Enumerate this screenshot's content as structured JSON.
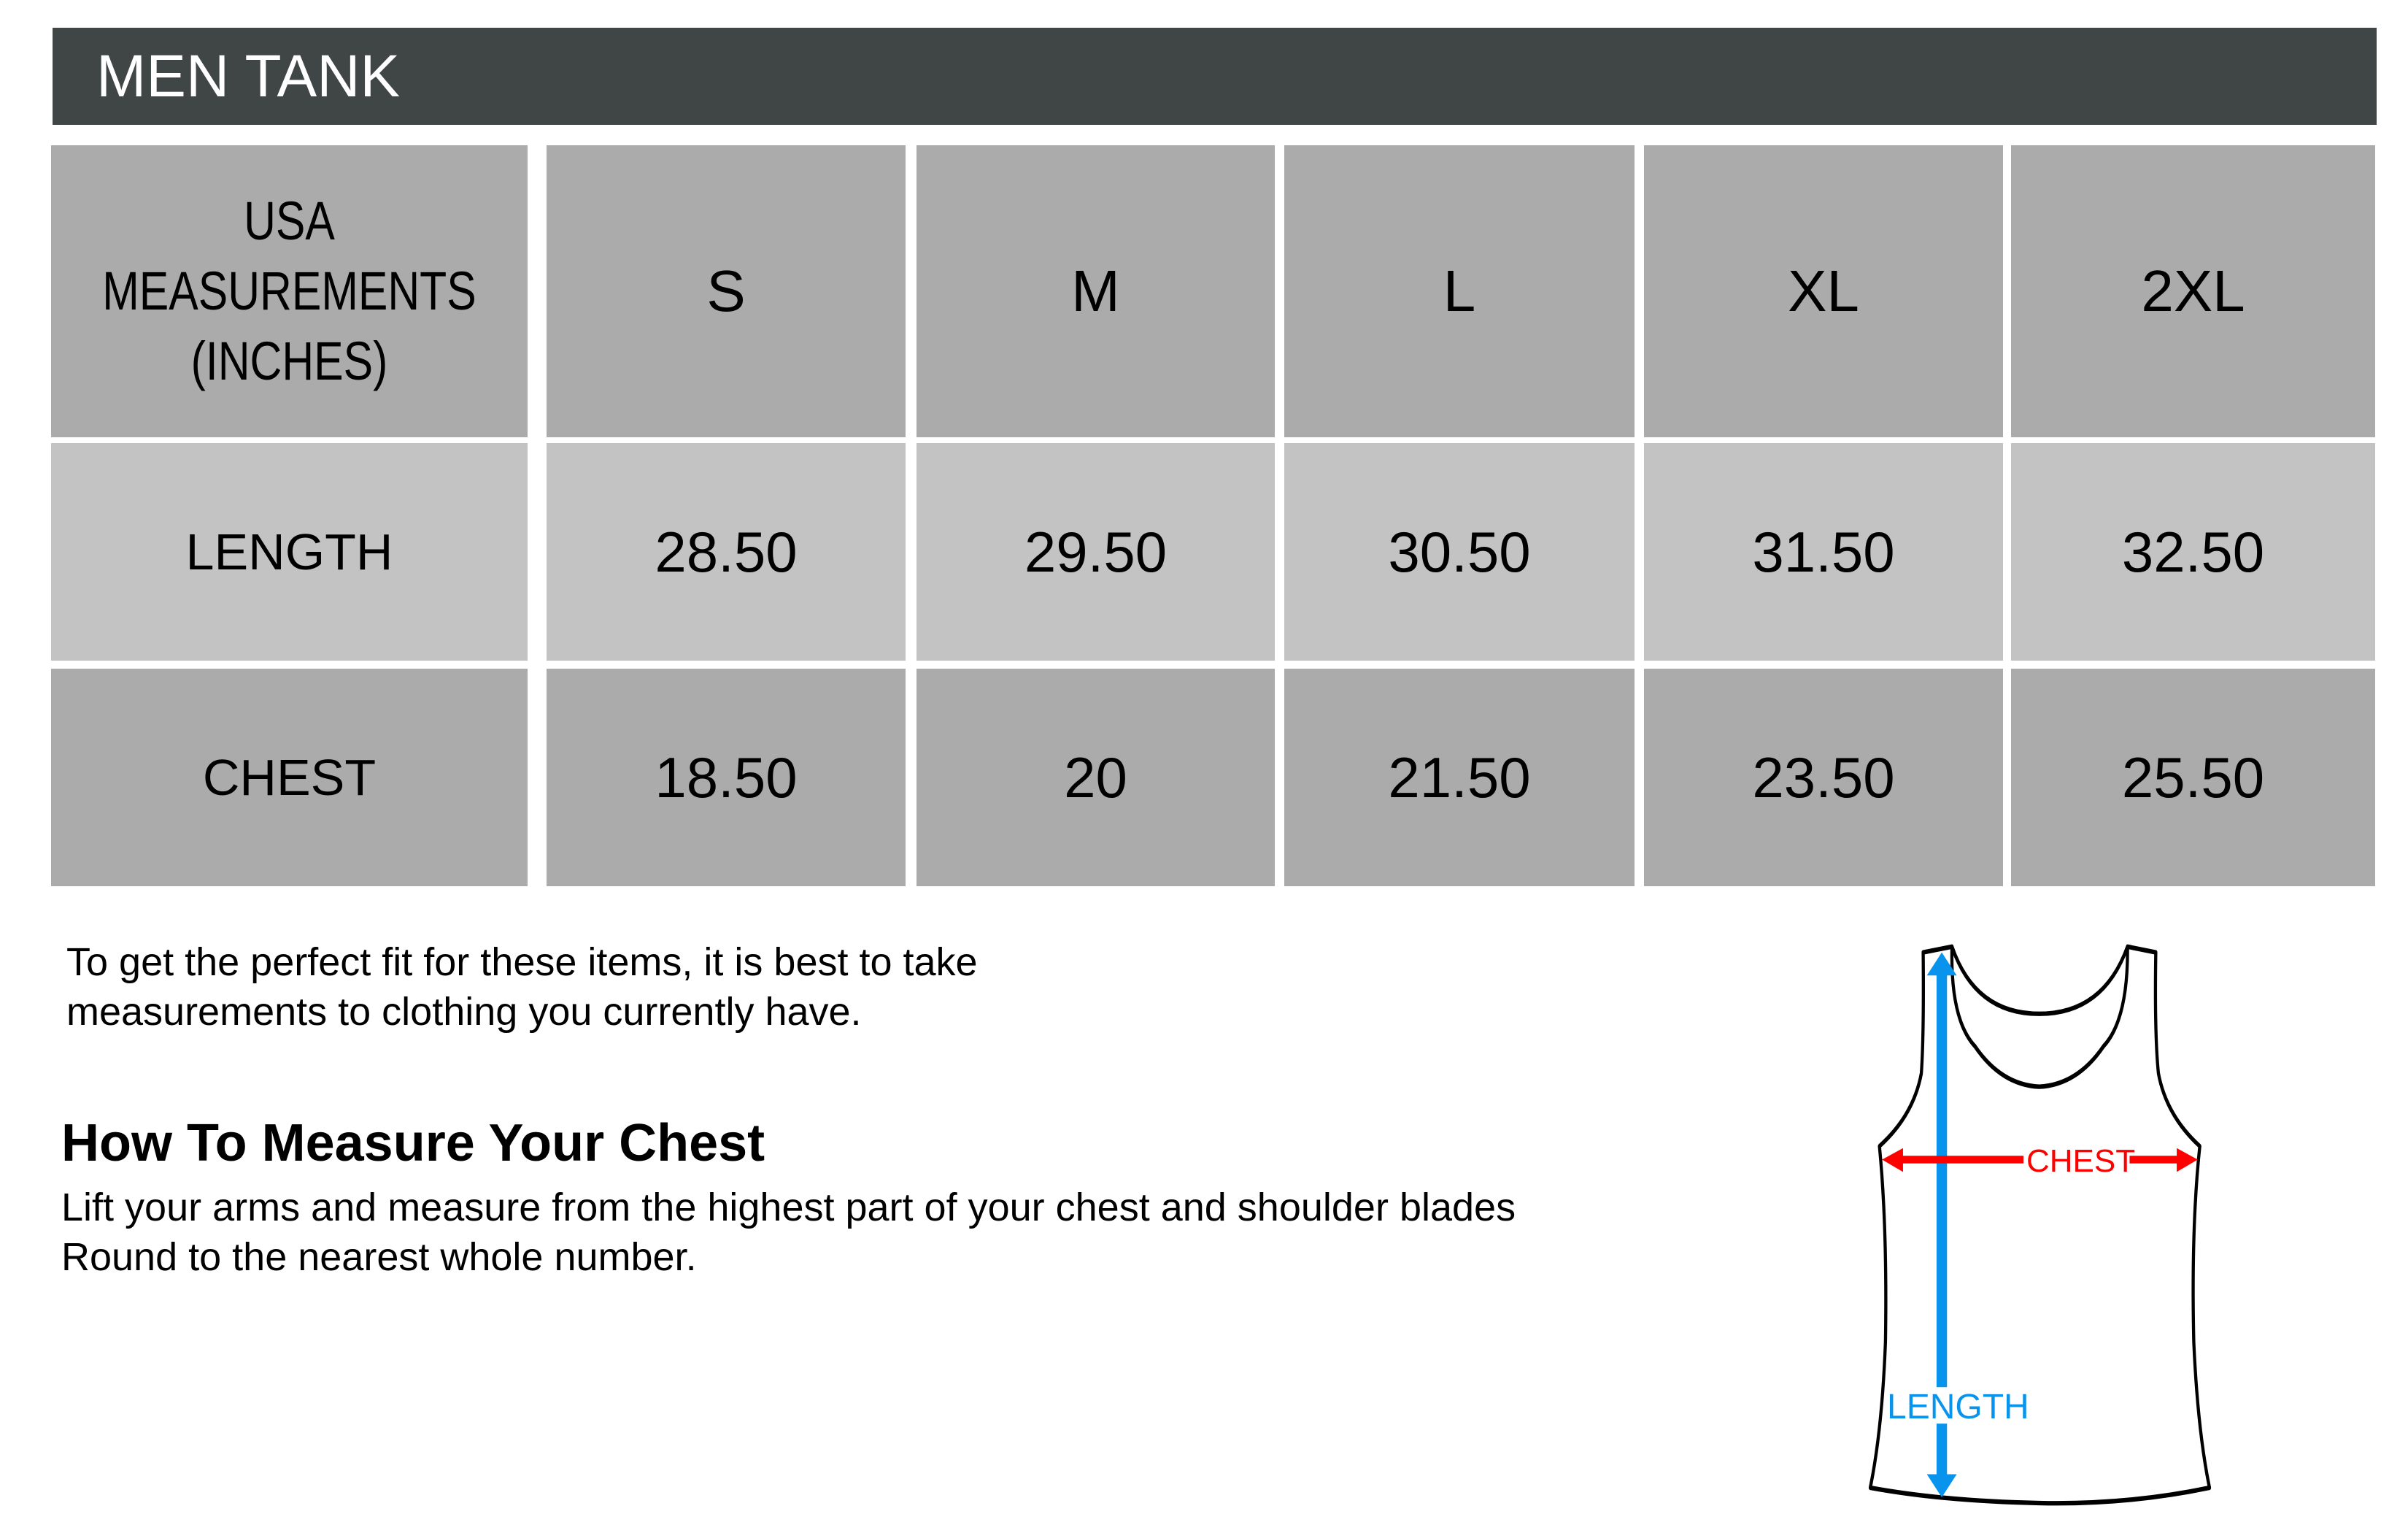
{
  "title": "MEN TANK",
  "table": {
    "corner": [
      "USA",
      "MEASUREMENTS",
      "(INCHES)"
    ],
    "sizes": [
      "S",
      "M",
      "L",
      "XL",
      "2XL"
    ],
    "rows": [
      {
        "label": "LENGTH",
        "values": [
          "28.50",
          "29.50",
          "30.50",
          "31.50",
          "32.50"
        ]
      },
      {
        "label": "CHEST",
        "values": [
          "18.50",
          "20",
          "21.50",
          "23.50",
          "25.50"
        ]
      }
    ]
  },
  "intro": [
    "To get the perfect fit for these items, it is best to take",
    "measurements to clothing you currently have."
  ],
  "howto": {
    "heading": "How To Measure Your Chest",
    "lines": [
      "Lift your arms and measure from the highest part of your chest and shoulder blades",
      "Round to the nearest whole number."
    ]
  },
  "diagram": {
    "chest_label": "CHEST",
    "length_label": "LENGTH",
    "chest_color": "#ff0000",
    "length_color": "#0894ec"
  }
}
